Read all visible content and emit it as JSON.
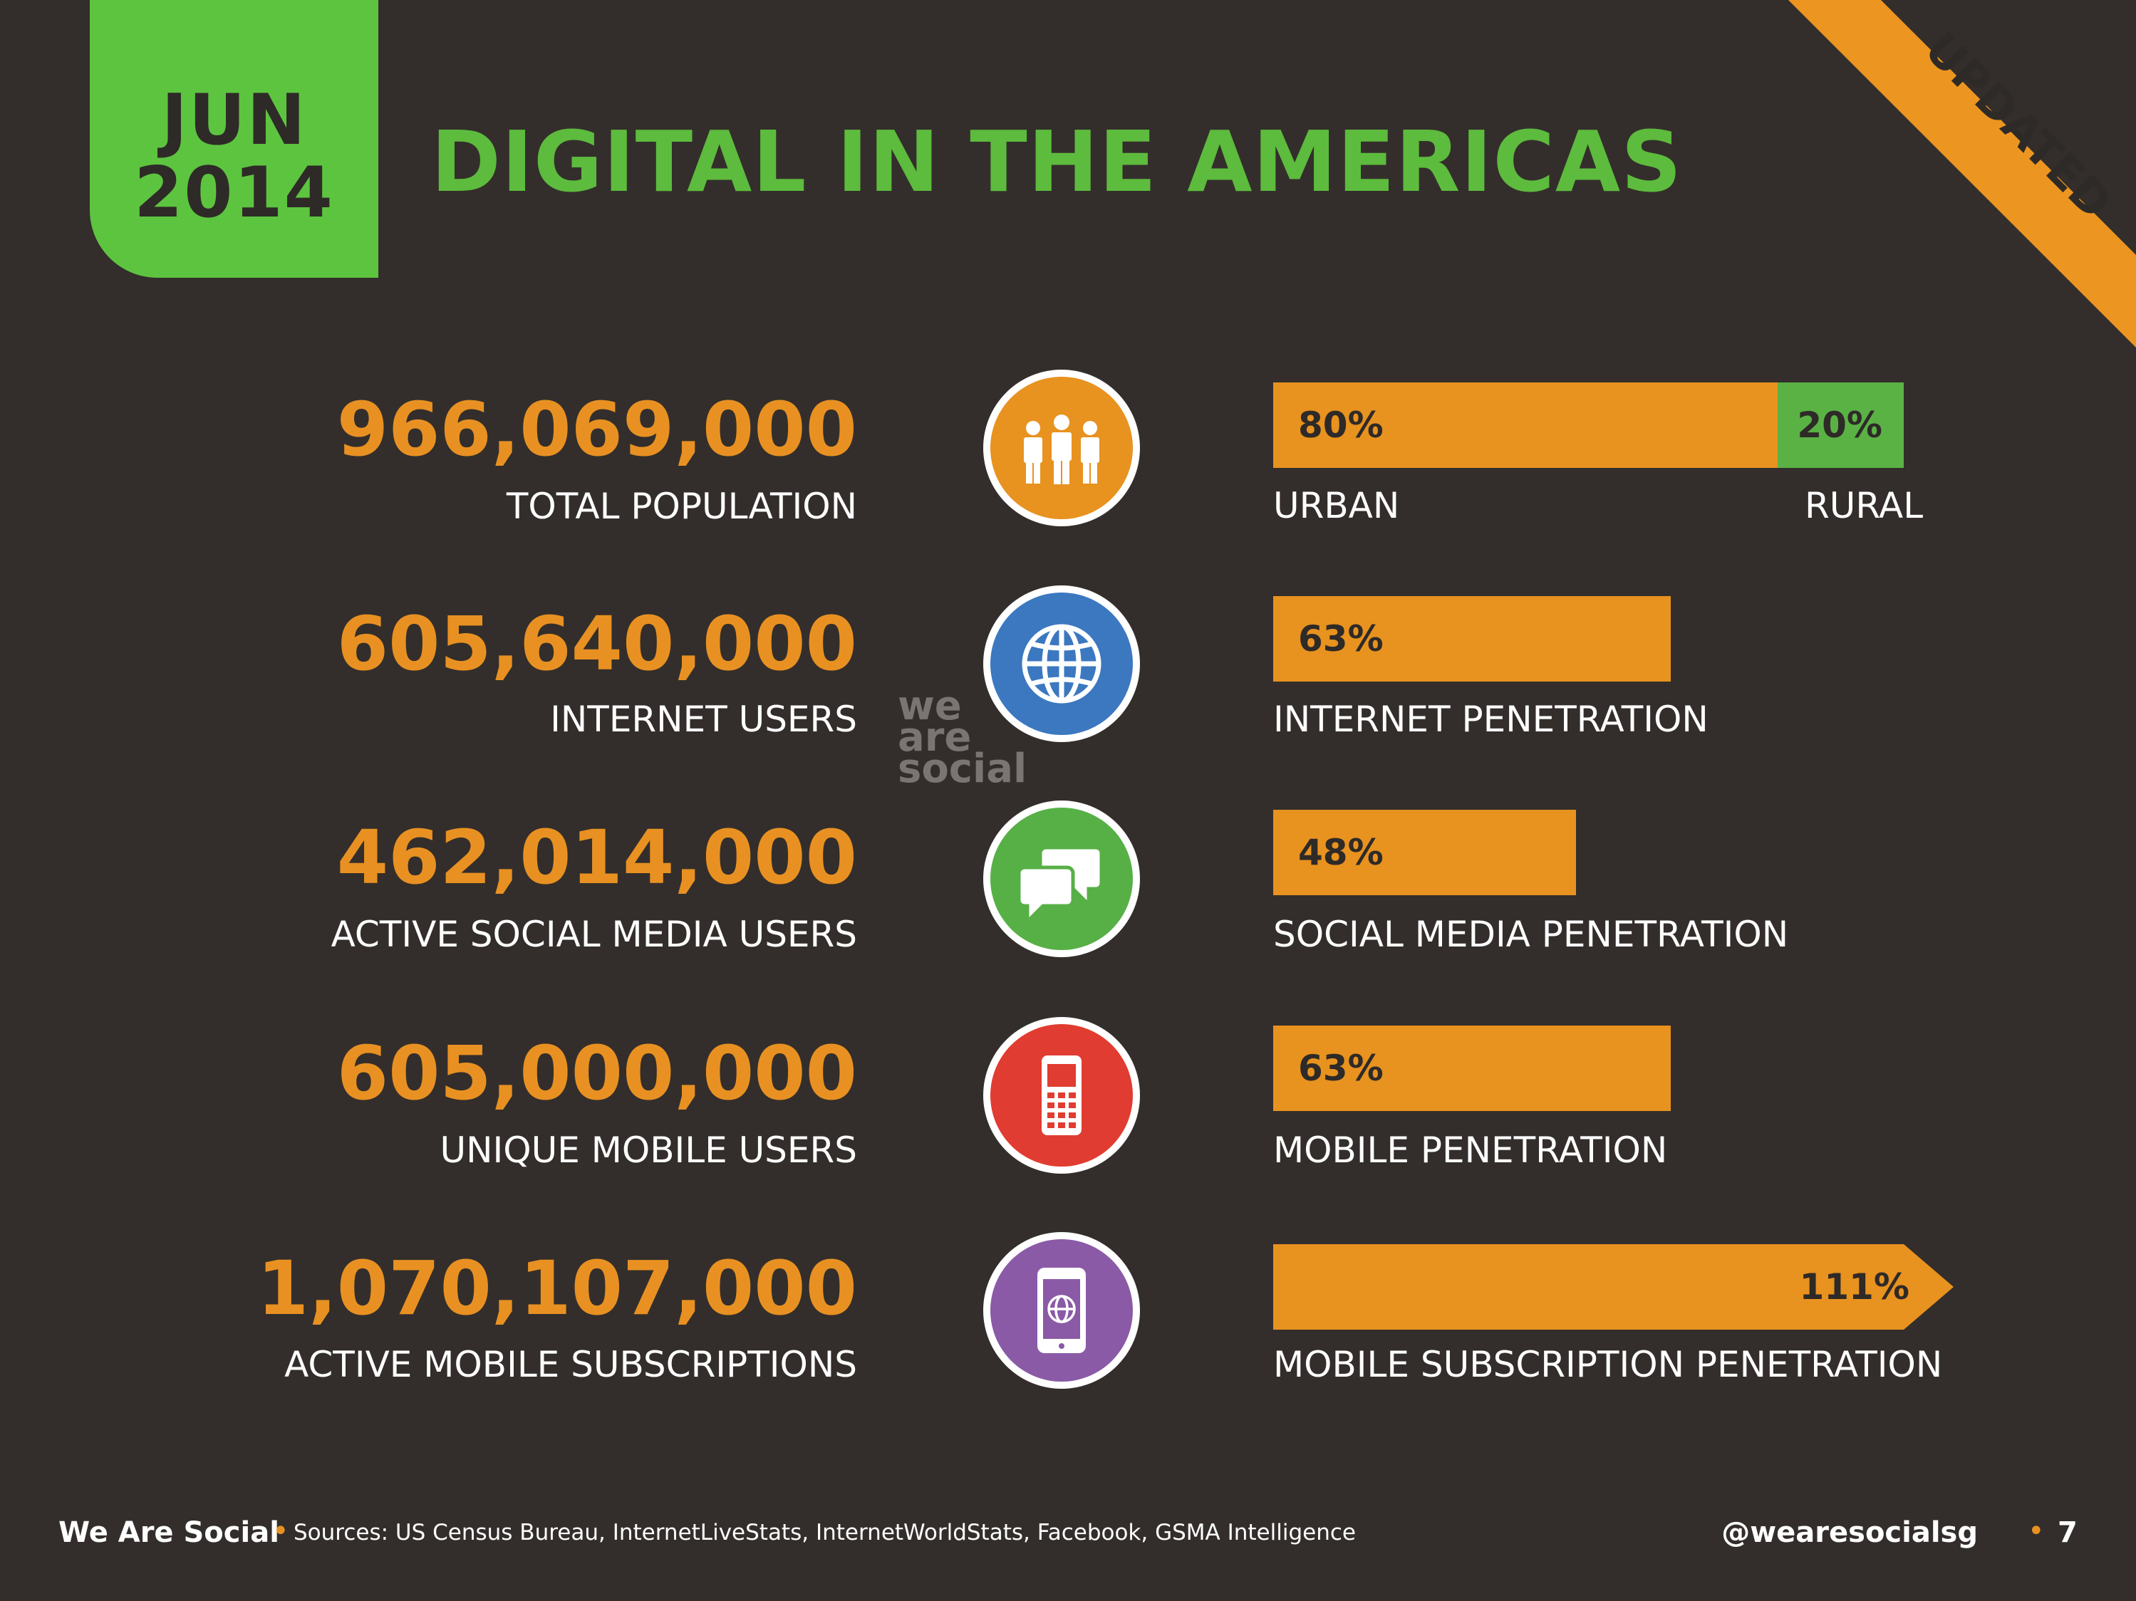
{
  "header": {
    "date_month": "JUN",
    "date_year": "2014",
    "title": "DIGITAL IN THE AMERICAS",
    "ribbon_label": "UPDATED"
  },
  "watermark": {
    "line1": "we",
    "line2": "are",
    "line3": "social"
  },
  "colors": {
    "background": "#332e2b",
    "brand_green": "#5dc440",
    "accent_orange": "#e8921f",
    "rural_green": "#5ab245",
    "icon_population": "#e8921f",
    "icon_internet": "#3b78c0",
    "icon_social": "#57b046",
    "icon_mobile": "#e13c31",
    "icon_subscriptions": "#8a5aa6"
  },
  "chart_data": {
    "type": "bar",
    "rows": [
      {
        "value": "966,069,000",
        "label": "TOTAL POPULATION",
        "icon": "people-icon",
        "bar": {
          "segments": [
            {
              "name": "URBAN",
              "value": 80,
              "text": "80%"
            },
            {
              "name": "RURAL",
              "value": 20,
              "text": "20%"
            }
          ]
        },
        "caption_left": "URBAN",
        "caption_right": "RURAL"
      },
      {
        "value": "605,640,000",
        "label": "INTERNET USERS",
        "icon": "globe-icon",
        "bar": {
          "value": 63,
          "text": "63%"
        },
        "caption_left": "INTERNET PENETRATION"
      },
      {
        "value": "462,014,000",
        "label": "ACTIVE SOCIAL MEDIA USERS",
        "icon": "chat-bubbles-icon",
        "bar": {
          "value": 48,
          "text": "48%"
        },
        "caption_left": "SOCIAL MEDIA PENETRATION"
      },
      {
        "value": "605,000,000",
        "label": "UNIQUE MOBILE USERS",
        "icon": "mobile-phone-icon",
        "bar": {
          "value": 63,
          "text": "63%"
        },
        "caption_left": "MOBILE PENETRATION"
      },
      {
        "value": "1,070,107,000",
        "label": "ACTIVE MOBILE SUBSCRIPTIONS",
        "icon": "smartphone-globe-icon",
        "bar": {
          "value": 111,
          "text": "111%",
          "overflow_arrow": true
        },
        "caption_left": "MOBILE SUBSCRIPTION PENETRATION"
      }
    ]
  },
  "footer": {
    "brand": "We Are Social",
    "sources": "Sources: US Census Bureau, InternetLiveStats, InternetWorldStats, Facebook, GSMA Intelligence",
    "handle": "@wearesocialsg",
    "page_number": "7"
  }
}
